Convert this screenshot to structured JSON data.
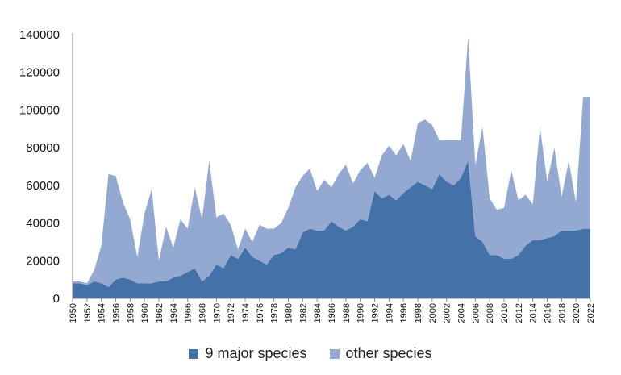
{
  "chart_data": {
    "type": "area",
    "stacked": true,
    "x": [
      1950,
      1951,
      1952,
      1953,
      1954,
      1955,
      1956,
      1957,
      1958,
      1959,
      1960,
      1961,
      1962,
      1963,
      1964,
      1965,
      1966,
      1967,
      1968,
      1969,
      1970,
      1971,
      1972,
      1973,
      1974,
      1975,
      1976,
      1977,
      1978,
      1979,
      1980,
      1981,
      1982,
      1983,
      1984,
      1985,
      1986,
      1987,
      1988,
      1989,
      1990,
      1991,
      1992,
      1993,
      1994,
      1995,
      1996,
      1997,
      1998,
      1999,
      2000,
      2001,
      2002,
      2003,
      2004,
      2005,
      2006,
      2007,
      2008,
      2009,
      2010,
      2011,
      2012,
      2013,
      2014,
      2015,
      2016,
      2017,
      2018,
      2019,
      2020,
      2021,
      2022
    ],
    "series": [
      {
        "name": "9 major species",
        "color": "#4472a8",
        "values": [
          8000,
          8000,
          7000,
          9000,
          8000,
          6000,
          10000,
          11000,
          10000,
          8000,
          8000,
          8000,
          9000,
          9000,
          11000,
          12000,
          14000,
          16000,
          9000,
          12000,
          18000,
          16000,
          23000,
          21000,
          27000,
          22000,
          20000,
          18000,
          23000,
          24000,
          27000,
          26000,
          35000,
          37000,
          36000,
          36000,
          41000,
          38000,
          36000,
          38000,
          42000,
          41000,
          57000,
          53000,
          55000,
          52000,
          56000,
          59000,
          62000,
          60000,
          58000,
          66000,
          62000,
          60000,
          64000,
          73000,
          33000,
          30000,
          23000,
          23000,
          21000,
          21000,
          23000,
          28000,
          31000,
          31000,
          32000,
          33000,
          36000,
          36000,
          36000,
          37000,
          37000
        ]
      },
      {
        "name": "other species",
        "color": "#93a9d1",
        "values": [
          1000,
          1000,
          1000,
          6000,
          20000,
          60000,
          55000,
          40000,
          32000,
          14000,
          37000,
          50000,
          11000,
          29000,
          16000,
          30000,
          23000,
          43000,
          33000,
          61000,
          25000,
          29000,
          16000,
          5000,
          10000,
          8000,
          19000,
          19000,
          14000,
          16000,
          21000,
          33000,
          30000,
          32000,
          21000,
          27000,
          18000,
          28000,
          35000,
          23000,
          26000,
          31000,
          7000,
          23000,
          26000,
          24000,
          26000,
          14000,
          31000,
          35000,
          34000,
          18000,
          22000,
          24000,
          20000,
          66000,
          38000,
          61000,
          30000,
          24000,
          27000,
          47000,
          29000,
          27000,
          19000,
          60000,
          30000,
          47000,
          18000,
          37000,
          15000,
          70000,
          70000
        ]
      }
    ],
    "ylim": [
      0,
      140000
    ],
    "yticks": [
      0,
      20000,
      40000,
      60000,
      80000,
      100000,
      120000,
      140000
    ],
    "ytick_labels": [
      "0",
      "20000",
      "40000",
      "60000",
      "80000",
      "100000",
      "120000",
      "140000"
    ],
    "xticks": [
      1950,
      1952,
      1954,
      1956,
      1958,
      1960,
      1962,
      1964,
      1966,
      1968,
      1970,
      1972,
      1974,
      1976,
      1978,
      1980,
      1982,
      1984,
      1986,
      1988,
      1990,
      1992,
      1994,
      1996,
      1998,
      2000,
      2002,
      2004,
      2006,
      2008,
      2010,
      2012,
      2014,
      2016,
      2018,
      2020,
      2022
    ],
    "grid": false,
    "legend_position": "bottom",
    "title": "",
    "xlabel": "",
    "ylabel": ""
  },
  "legend": {
    "items": [
      {
        "label": "9 major species",
        "color": "#4472a8"
      },
      {
        "label": "other species",
        "color": "#93a9d1"
      }
    ]
  }
}
